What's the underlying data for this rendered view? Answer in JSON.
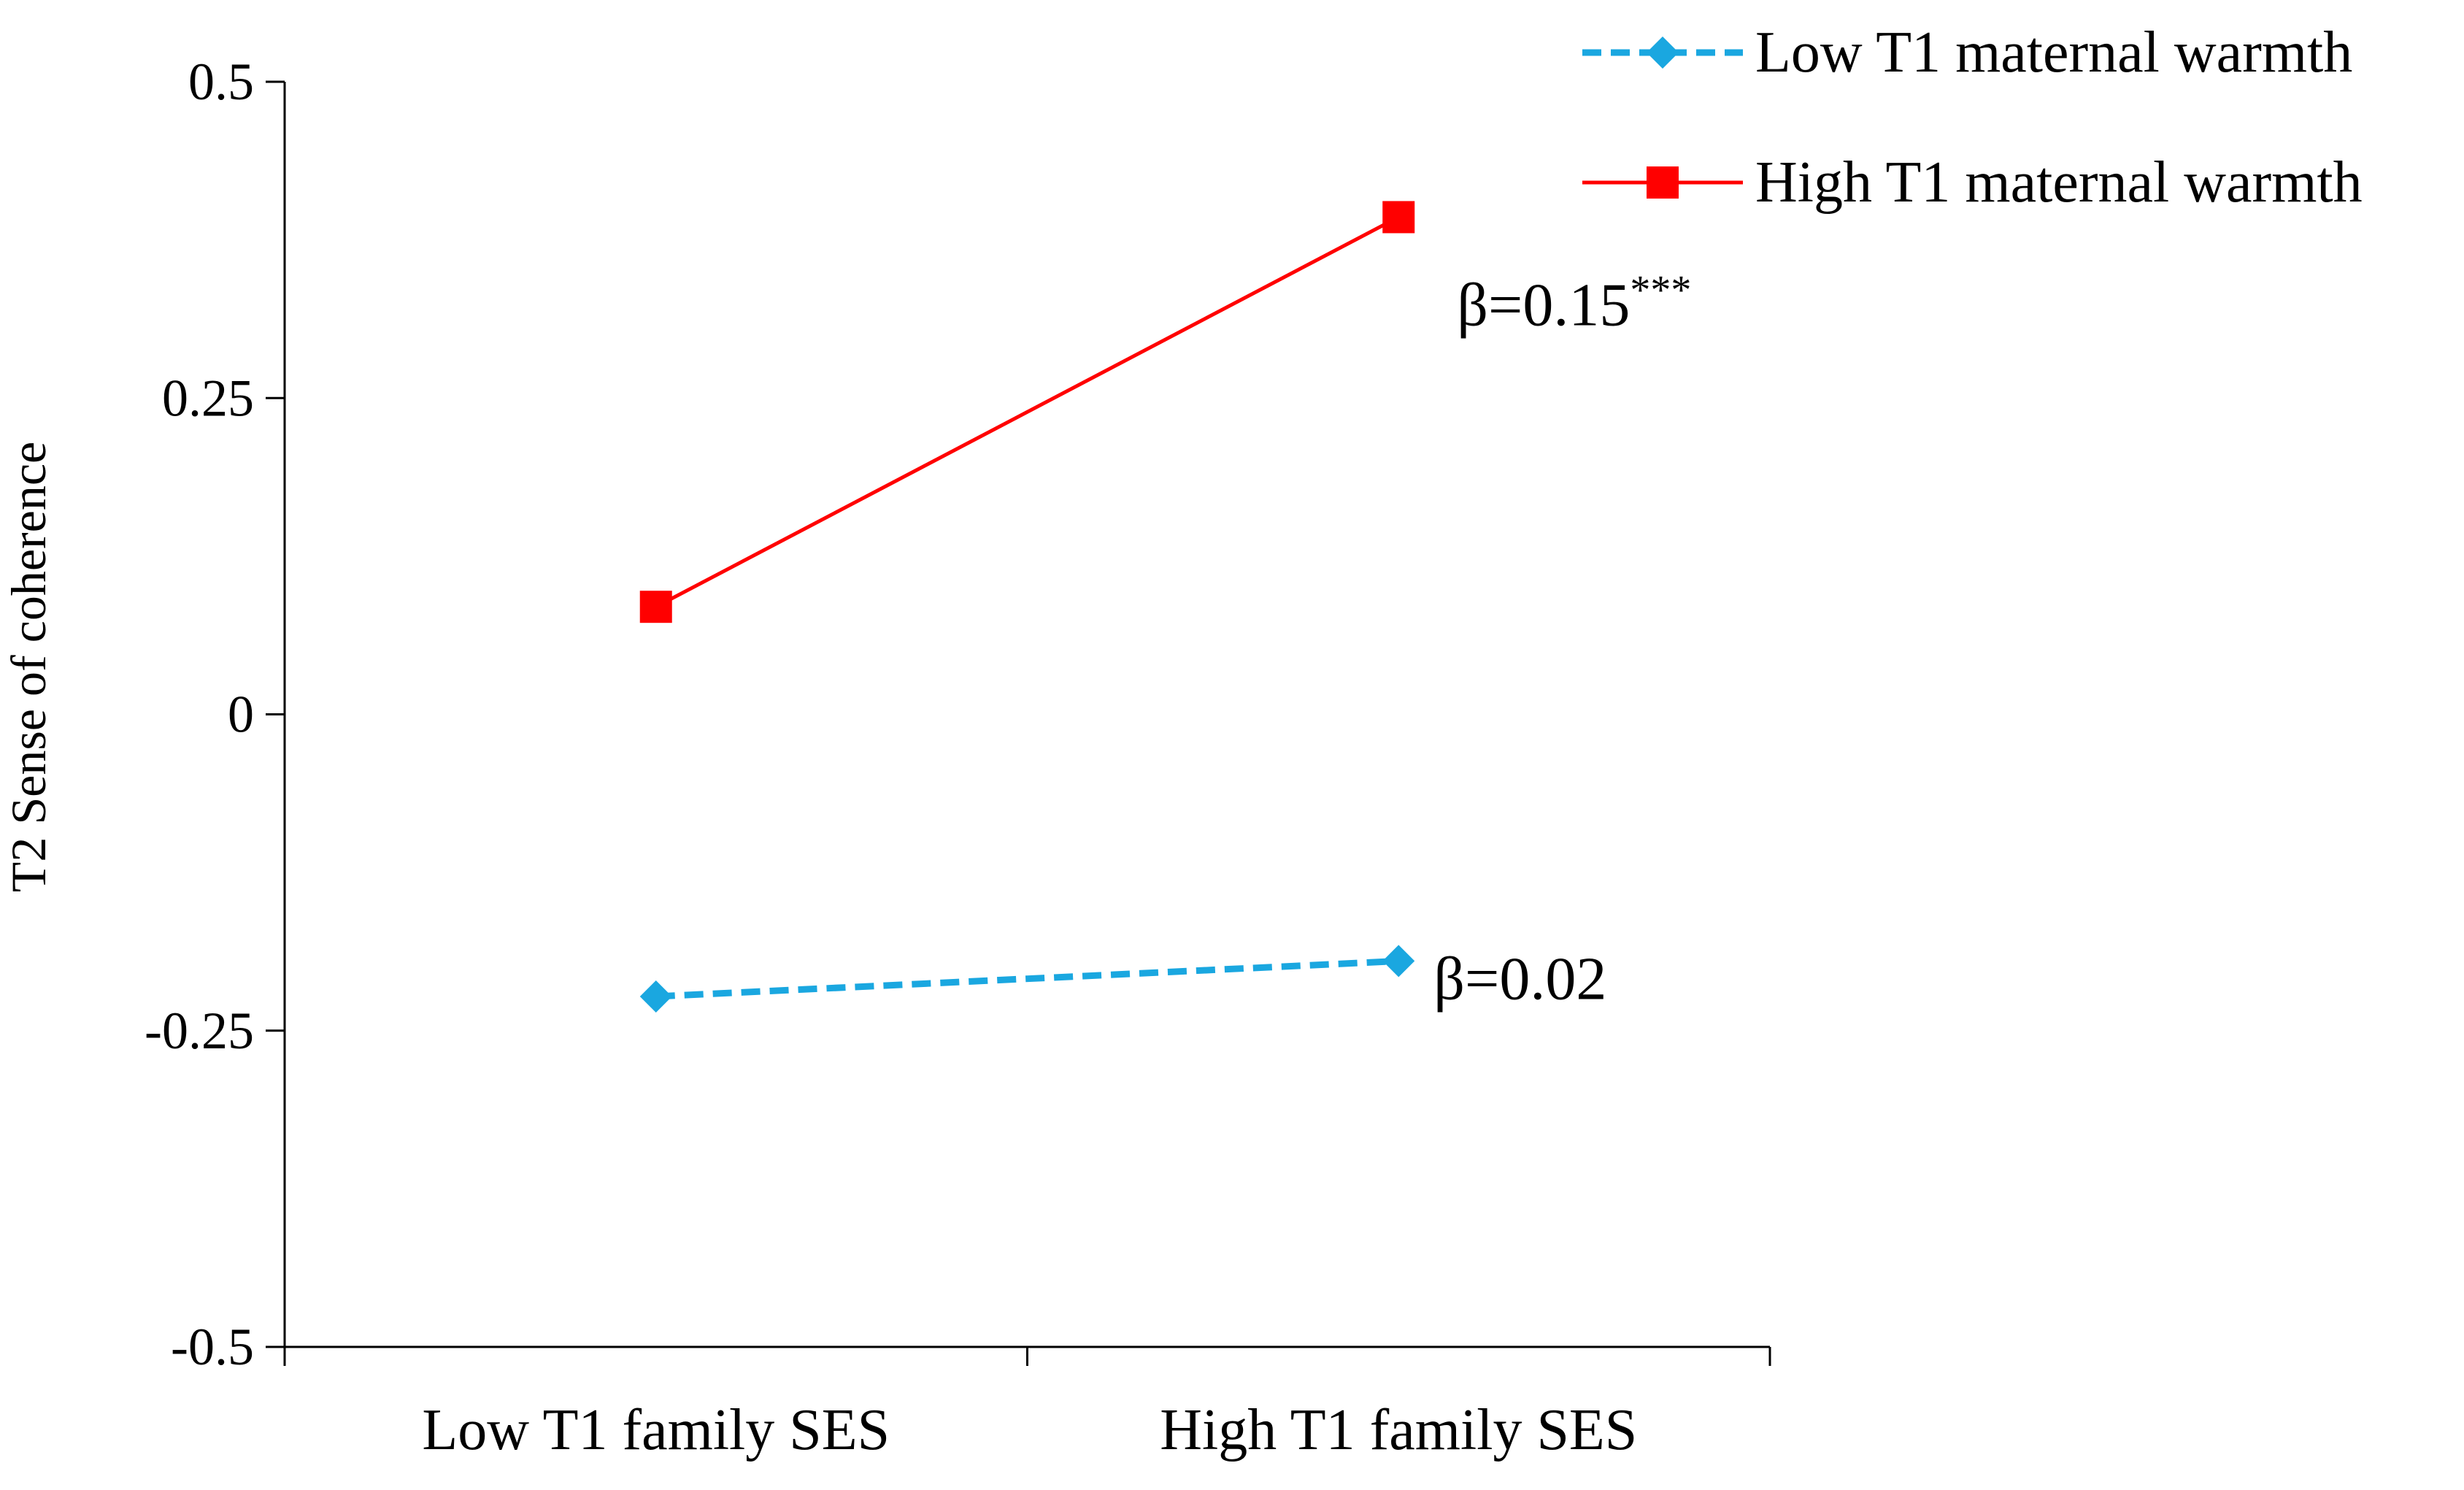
{
  "chart_data": {
    "type": "line",
    "title": "",
    "xlabel": "",
    "ylabel": "T2 Sense of coherence",
    "categories": [
      "Low T1 family SES",
      "High T1 family SES"
    ],
    "ylim": [
      -0.5,
      0.5
    ],
    "yticks": [
      -0.5,
      -0.25,
      0,
      0.25,
      0.5
    ],
    "ytick_labels": [
      "-0.5",
      "-0.25",
      "0",
      "0.25",
      "0.5"
    ],
    "grid": false,
    "legend_position": "top-right",
    "series": [
      {
        "name": "Low T1 maternal warmth",
        "values": [
          -0.223,
          -0.195
        ],
        "color": "#1aa7e0",
        "line_style": "dashed",
        "marker": "diamond",
        "annotation": {
          "text": "β=0.02",
          "superscript": ""
        }
      },
      {
        "name": "High T1 maternal warmth",
        "values": [
          0.085,
          0.393
        ],
        "color": "#ff0000",
        "line_style": "solid",
        "marker": "square",
        "annotation": {
          "text": "β=0.15",
          "superscript": "***"
        }
      }
    ]
  }
}
